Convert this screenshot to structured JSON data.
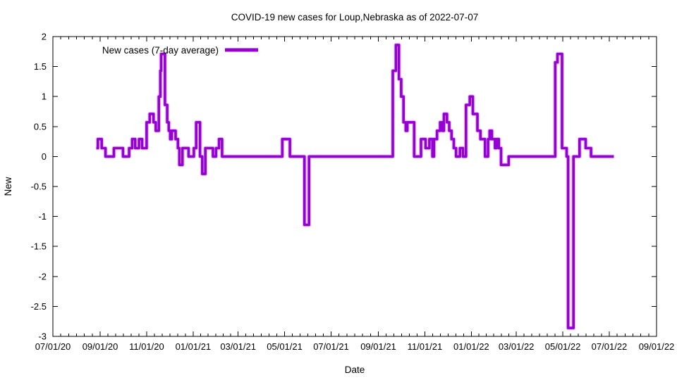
{
  "title": "COVID-19 new cases for Loup,Nebraska as of 2022-07-07",
  "chart_data": {
    "type": "line",
    "style": "step-after",
    "title": "COVID-19 new cases for Loup,Nebraska as of 2022-07-07",
    "xlabel": "Date",
    "ylabel": "New",
    "legend_position": "top-left-inside",
    "grid": false,
    "line_color": "#9400d3",
    "line_halo_color": "#c77ae0",
    "axis_color": "#000000",
    "background": "#ffffff",
    "ylim": [
      -3,
      2
    ],
    "yticks": [
      2,
      1.5,
      1,
      0.5,
      0,
      -0.5,
      -1,
      -1.5,
      -2,
      -2.5,
      -3
    ],
    "x_axis_note": "days measured from 2020-07-01; axis spans 07/01/20 to 09/01/22 (792 days)",
    "x_range_days": [
      0,
      792
    ],
    "xtick_days": [
      0,
      62,
      123,
      184,
      243,
      304,
      365,
      427,
      488,
      549,
      608,
      669,
      730,
      792
    ],
    "xtick_labels": [
      "07/01/20",
      "09/01/20",
      "11/01/20",
      "01/01/21",
      "03/01/21",
      "05/01/21",
      "07/01/21",
      "09/01/21",
      "11/01/21",
      "01/01/22",
      "03/01/22",
      "05/01/22",
      "07/01/22",
      "09/01/22"
    ],
    "x_minor_divisions": 6,
    "series": [
      {
        "name": "New cases (7-day average)",
        "step_points": [
          [
            57,
            0.14
          ],
          [
            59,
            0.29
          ],
          [
            64,
            0.14
          ],
          [
            69,
            0
          ],
          [
            80,
            0.14
          ],
          [
            92,
            0
          ],
          [
            100,
            0.14
          ],
          [
            104,
            0.29
          ],
          [
            108,
            0.14
          ],
          [
            113,
            0.29
          ],
          [
            117,
            0.14
          ],
          [
            123,
            0.57
          ],
          [
            127,
            0.71
          ],
          [
            132,
            0.57
          ],
          [
            135,
            0.43
          ],
          [
            139,
            1
          ],
          [
            141,
            1.43
          ],
          [
            142,
            1.71
          ],
          [
            147,
            0.86
          ],
          [
            150,
            0.57
          ],
          [
            152,
            0.43
          ],
          [
            154,
            0.29
          ],
          [
            156,
            0.43
          ],
          [
            161,
            0.29
          ],
          [
            164,
            0.14
          ],
          [
            166,
            -0.14
          ],
          [
            170,
            0.14
          ],
          [
            178,
            0
          ],
          [
            185,
            0.14
          ],
          [
            188,
            0.57
          ],
          [
            193,
            0
          ],
          [
            196,
            -0.29
          ],
          [
            200,
            0.14
          ],
          [
            210,
            0
          ],
          [
            214,
            0.14
          ],
          [
            218,
            0.29
          ],
          [
            222,
            0
          ],
          [
            301,
            0.29
          ],
          [
            311,
            0
          ],
          [
            330,
            -1.14
          ],
          [
            336,
            0
          ],
          [
            446,
            1.43
          ],
          [
            450,
            1.86
          ],
          [
            454,
            1.29
          ],
          [
            457,
            1
          ],
          [
            460,
            0.57
          ],
          [
            463,
            0.43
          ],
          [
            465,
            0.57
          ],
          [
            474,
            0
          ],
          [
            483,
            0.29
          ],
          [
            489,
            0.14
          ],
          [
            494,
            0.29
          ],
          [
            498,
            0
          ],
          [
            500,
            0.29
          ],
          [
            504,
            0.43
          ],
          [
            508,
            0.57
          ],
          [
            511,
            0.43
          ],
          [
            513,
            0.71
          ],
          [
            517,
            0.57
          ],
          [
            520,
            0.43
          ],
          [
            523,
            0.29
          ],
          [
            526,
            0.14
          ],
          [
            529,
            0
          ],
          [
            534,
            0.14
          ],
          [
            538,
            0
          ],
          [
            542,
            0.86
          ],
          [
            547,
            1
          ],
          [
            551,
            0.71
          ],
          [
            557,
            0.43
          ],
          [
            561,
            0.29
          ],
          [
            567,
            0
          ],
          [
            571,
            0.29
          ],
          [
            573,
            0.43
          ],
          [
            576,
            0.29
          ],
          [
            580,
            0.14
          ],
          [
            582,
            0.29
          ],
          [
            585,
            0.14
          ],
          [
            588,
            -0.14
          ],
          [
            598,
            0
          ],
          [
            659,
            1.57
          ],
          [
            662,
            1.71
          ],
          [
            668,
            0.14
          ],
          [
            674,
            0
          ],
          [
            676,
            -2.86
          ],
          [
            683,
            0
          ],
          [
            691,
            0.29
          ],
          [
            699,
            0.14
          ],
          [
            706,
            0
          ],
          [
            736,
            0
          ]
        ]
      }
    ]
  }
}
